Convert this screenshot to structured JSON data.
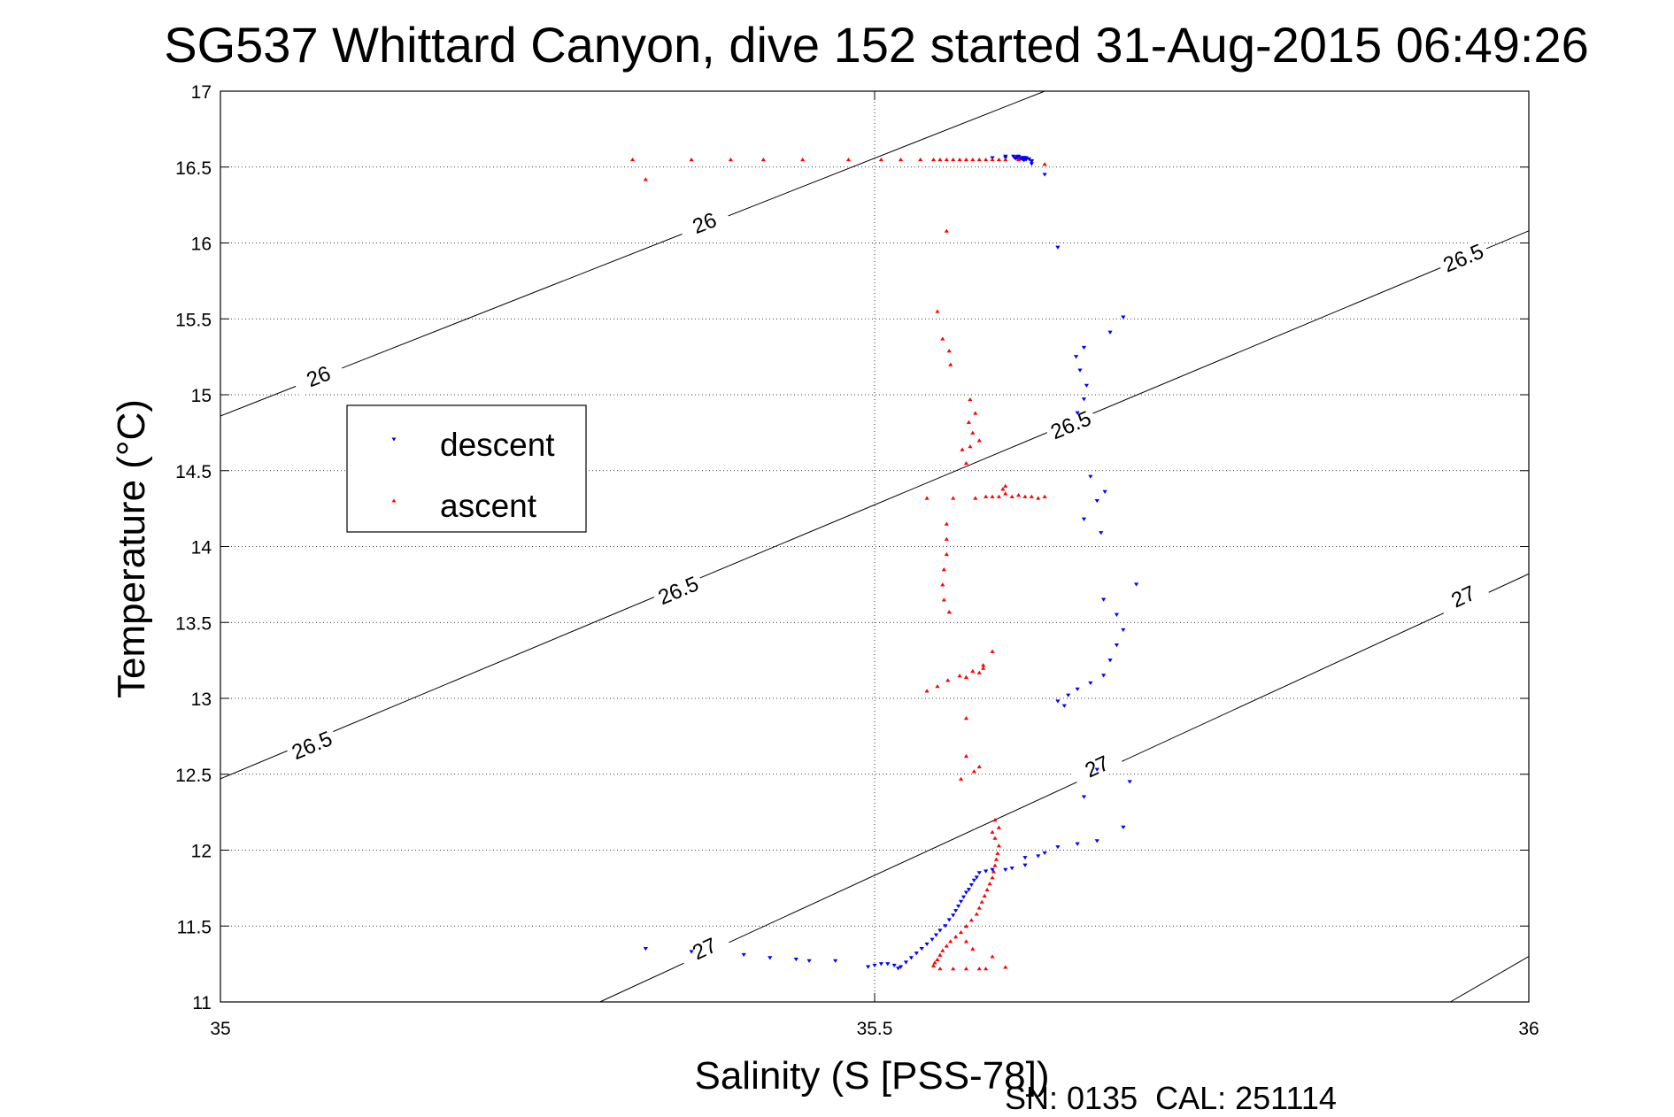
{
  "chart_data": {
    "type": "scatter",
    "title": "SG537 Whittard Canyon, dive 152 started 31-Aug-2015 06:49:26",
    "xlabel": "Salinity (S [PSS-78])",
    "ylabel": "Temperature (°C)",
    "xlim": [
      35,
      36
    ],
    "ylim": [
      11,
      17
    ],
    "xticks": [
      "35",
      "35.5",
      "36"
    ],
    "yticks": [
      "11",
      "11.5",
      "12",
      "12.5",
      "13",
      "13.5",
      "14",
      "14.5",
      "15",
      "15.5",
      "16",
      "16.5",
      "17"
    ],
    "grid": true,
    "legend_position": "left",
    "colors": {
      "descent": "#0000ff",
      "ascent": "#ff0000",
      "contour": "#000000"
    },
    "contours": [
      {
        "label": "26",
        "line": [
          [
            35.0,
            14.86
          ],
          [
            35.63,
            17.0
          ]
        ],
        "label_points": [
          [
            35.075,
            15.12
          ],
          [
            35.37,
            16.13
          ]
        ]
      },
      {
        "label": "26.5",
        "line": [
          [
            35.0,
            12.47
          ],
          [
            36.0,
            16.08
          ]
        ],
        "label_points": [
          [
            35.07,
            12.69
          ],
          [
            35.35,
            13.71
          ],
          [
            35.65,
            14.8
          ],
          [
            35.95,
            15.9
          ]
        ]
      },
      {
        "label": "27",
        "line": [
          [
            35.29,
            11.0
          ],
          [
            36.0,
            13.82
          ]
        ],
        "label_points": [
          [
            35.37,
            11.35
          ],
          [
            35.67,
            12.55
          ],
          [
            35.95,
            13.67
          ]
        ]
      },
      {
        "label": "",
        "line": [
          [
            35.94,
            11.0
          ],
          [
            36.0,
            11.3
          ]
        ],
        "label_points": []
      }
    ],
    "series": [
      {
        "name": "descent",
        "marker": "triangle-down",
        "points": [
          [
            35.59,
            16.56
          ],
          [
            35.6,
            16.57
          ],
          [
            35.6,
            16.56
          ],
          [
            35.61,
            16.56
          ],
          [
            35.61,
            16.57
          ],
          [
            35.615,
            16.55
          ],
          [
            35.62,
            16.54
          ],
          [
            35.62,
            16.52
          ],
          [
            35.613,
            16.55
          ],
          [
            35.607,
            16.56
          ],
          [
            35.61,
            16.565
          ],
          [
            35.61,
            16.55
          ],
          [
            35.608,
            16.555
          ],
          [
            35.616,
            16.56
          ],
          [
            35.615,
            16.55
          ],
          [
            35.612,
            16.558
          ],
          [
            35.618,
            16.552
          ],
          [
            35.614,
            16.562
          ],
          [
            35.611,
            16.55
          ],
          [
            35.606,
            16.57
          ],
          [
            35.609,
            16.568
          ],
          [
            35.612,
            16.56
          ],
          [
            35.616,
            16.55
          ],
          [
            35.62,
            16.535
          ],
          [
            35.614,
            16.545
          ],
          [
            35.63,
            16.45
          ],
          [
            35.64,
            15.97
          ],
          [
            35.69,
            15.51
          ],
          [
            35.68,
            15.41
          ],
          [
            35.66,
            15.31
          ],
          [
            35.654,
            15.25
          ],
          [
            35.657,
            15.16
          ],
          [
            35.662,
            15.06
          ],
          [
            35.66,
            14.97
          ],
          [
            35.655,
            14.88
          ],
          [
            35.665,
            14.46
          ],
          [
            35.67,
            14.3
          ],
          [
            35.66,
            14.18
          ],
          [
            35.673,
            14.09
          ],
          [
            35.676,
            14.36
          ],
          [
            35.7,
            13.75
          ],
          [
            35.675,
            13.65
          ],
          [
            35.685,
            13.55
          ],
          [
            35.69,
            13.45
          ],
          [
            35.685,
            13.35
          ],
          [
            35.68,
            13.25
          ],
          [
            35.675,
            13.15
          ],
          [
            35.665,
            13.1
          ],
          [
            35.655,
            13.06
          ],
          [
            35.648,
            13.02
          ],
          [
            35.64,
            12.98
          ],
          [
            35.645,
            12.95
          ],
          [
            35.67,
            12.53
          ],
          [
            35.66,
            12.35
          ],
          [
            35.695,
            12.45
          ],
          [
            35.69,
            12.15
          ],
          [
            35.67,
            12.06
          ],
          [
            35.655,
            12.04
          ],
          [
            35.64,
            12.02
          ],
          [
            35.63,
            11.98
          ],
          [
            35.625,
            11.96
          ],
          [
            35.615,
            11.95
          ],
          [
            35.615,
            11.9
          ],
          [
            35.605,
            11.88
          ],
          [
            35.6,
            11.87
          ],
          [
            35.59,
            11.87
          ],
          [
            35.585,
            11.86
          ],
          [
            35.58,
            11.85
          ],
          [
            35.578,
            11.82
          ],
          [
            35.576,
            11.8
          ],
          [
            35.574,
            11.77
          ],
          [
            35.572,
            11.74
          ],
          [
            35.57,
            11.72
          ],
          [
            35.568,
            11.69
          ],
          [
            35.566,
            11.66
          ],
          [
            35.564,
            11.63
          ],
          [
            35.562,
            11.6
          ],
          [
            35.56,
            11.57
          ],
          [
            35.557,
            11.54
          ],
          [
            35.554,
            11.5
          ],
          [
            35.55,
            11.47
          ],
          [
            35.547,
            11.44
          ],
          [
            35.544,
            11.41
          ],
          [
            35.54,
            11.38
          ],
          [
            35.536,
            11.35
          ],
          [
            35.532,
            11.32
          ],
          [
            35.528,
            11.29
          ],
          [
            35.524,
            11.26
          ],
          [
            35.52,
            11.23
          ],
          [
            35.518,
            11.22
          ],
          [
            35.515,
            11.24
          ],
          [
            35.51,
            11.25
          ],
          [
            35.505,
            11.25
          ],
          [
            35.5,
            11.24
          ],
          [
            35.495,
            11.23
          ],
          [
            35.47,
            11.27
          ],
          [
            35.45,
            11.27
          ],
          [
            35.44,
            11.28
          ],
          [
            35.42,
            11.29
          ],
          [
            35.4,
            11.31
          ],
          [
            35.36,
            11.33
          ],
          [
            35.325,
            11.35
          ]
        ]
      },
      {
        "name": "ascent",
        "marker": "triangle-up",
        "points": [
          [
            35.315,
            16.55
          ],
          [
            35.325,
            16.42
          ],
          [
            35.36,
            16.55
          ],
          [
            35.39,
            16.55
          ],
          [
            35.415,
            16.55
          ],
          [
            35.445,
            16.55
          ],
          [
            35.48,
            16.55
          ],
          [
            35.505,
            16.55
          ],
          [
            35.52,
            16.55
          ],
          [
            35.535,
            16.55
          ],
          [
            35.545,
            16.55
          ],
          [
            35.55,
            16.55
          ],
          [
            35.555,
            16.55
          ],
          [
            35.56,
            16.55
          ],
          [
            35.565,
            16.55
          ],
          [
            35.57,
            16.55
          ],
          [
            35.575,
            16.55
          ],
          [
            35.58,
            16.55
          ],
          [
            35.585,
            16.55
          ],
          [
            35.59,
            16.55
          ],
          [
            35.595,
            16.55
          ],
          [
            35.6,
            16.55
          ],
          [
            35.61,
            16.55
          ],
          [
            35.63,
            16.52
          ],
          [
            35.555,
            16.08
          ],
          [
            35.548,
            15.55
          ],
          [
            35.552,
            15.37
          ],
          [
            35.557,
            15.29
          ],
          [
            35.558,
            15.2
          ],
          [
            35.573,
            14.97
          ],
          [
            35.577,
            14.88
          ],
          [
            35.572,
            14.82
          ],
          [
            35.575,
            14.75
          ],
          [
            35.58,
            14.7
          ],
          [
            35.573,
            14.66
          ],
          [
            35.567,
            14.64
          ],
          [
            35.57,
            14.55
          ],
          [
            35.54,
            14.32
          ],
          [
            35.56,
            14.32
          ],
          [
            35.577,
            14.32
          ],
          [
            35.585,
            14.33
          ],
          [
            35.59,
            14.33
          ],
          [
            35.595,
            14.33
          ],
          [
            35.6,
            14.35
          ],
          [
            35.605,
            14.33
          ],
          [
            35.61,
            14.34
          ],
          [
            35.615,
            14.33
          ],
          [
            35.62,
            14.33
          ],
          [
            35.625,
            14.32
          ],
          [
            35.63,
            14.33
          ],
          [
            35.6,
            14.4
          ],
          [
            35.598,
            14.38
          ],
          [
            35.555,
            14.15
          ],
          [
            35.555,
            14.05
          ],
          [
            35.555,
            13.95
          ],
          [
            35.553,
            13.85
          ],
          [
            35.552,
            13.75
          ],
          [
            35.553,
            13.65
          ],
          [
            35.557,
            13.57
          ],
          [
            35.59,
            13.31
          ],
          [
            35.583,
            13.22
          ],
          [
            35.575,
            13.18
          ],
          [
            35.565,
            13.15
          ],
          [
            35.556,
            13.12
          ],
          [
            35.548,
            13.08
          ],
          [
            35.54,
            13.05
          ],
          [
            35.583,
            13.2
          ],
          [
            35.58,
            13.17
          ],
          [
            35.57,
            13.14
          ],
          [
            35.57,
            12.87
          ],
          [
            35.57,
            12.62
          ],
          [
            35.58,
            12.55
          ],
          [
            35.576,
            12.52
          ],
          [
            35.566,
            12.47
          ],
          [
            35.592,
            12.2
          ],
          [
            35.595,
            12.15
          ],
          [
            35.59,
            12.12
          ],
          [
            35.592,
            12.08
          ],
          [
            35.595,
            12.03
          ],
          [
            35.594,
            11.98
          ],
          [
            35.593,
            11.94
          ],
          [
            35.592,
            11.9
          ],
          [
            35.591,
            11.86
          ],
          [
            35.59,
            11.82
          ],
          [
            35.588,
            11.78
          ],
          [
            35.586,
            11.74
          ],
          [
            35.584,
            11.7
          ],
          [
            35.582,
            11.66
          ],
          [
            35.58,
            11.62
          ],
          [
            35.578,
            11.58
          ],
          [
            35.574,
            11.54
          ],
          [
            35.57,
            11.5
          ],
          [
            35.566,
            11.46
          ],
          [
            35.562,
            11.43
          ],
          [
            35.558,
            11.4
          ],
          [
            35.555,
            11.37
          ],
          [
            35.552,
            11.34
          ],
          [
            35.55,
            11.31
          ],
          [
            35.548,
            11.28
          ],
          [
            35.546,
            11.26
          ],
          [
            35.545,
            11.24
          ],
          [
            35.55,
            11.22
          ],
          [
            35.56,
            11.22
          ],
          [
            35.57,
            11.22
          ],
          [
            35.58,
            11.22
          ],
          [
            35.585,
            11.22
          ],
          [
            35.6,
            11.23
          ],
          [
            35.59,
            11.3
          ],
          [
            35.575,
            11.35
          ],
          [
            35.57,
            11.4
          ]
        ]
      }
    ],
    "footer": "SN: 0135  CAL: 251114"
  }
}
